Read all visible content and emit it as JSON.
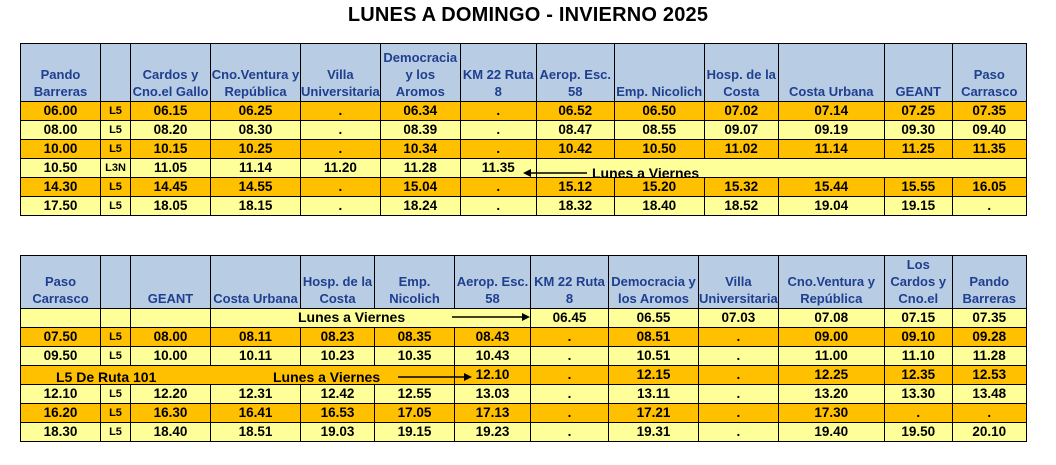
{
  "title": "LUNES A DOMINGO - INVIERNO 2025",
  "colors": {
    "header_bg": "#b8cce4",
    "header_text": "#1f3f8f",
    "orange": "#ffc000",
    "yellow": "#ffff99"
  },
  "table1": {
    "headers": [
      "Pando Barreras",
      "",
      "Cardos y Cno.el Gallo",
      "Cno.Ventura y República",
      "Villa Universitaria",
      "Democracia y los Aromos",
      "KM 22 Ruta 8",
      "Aerop. Esc. 58",
      "Emp. Nicolich",
      "Hosp. de la Costa",
      "Costa Urbana",
      "GEANT",
      "Paso Carrasco"
    ],
    "rows": [
      {
        "color": "orange",
        "cells": [
          "06.00",
          "L5",
          "06.15",
          "06.25",
          ".",
          "06.34",
          ".",
          "06.52",
          "06.50",
          "07.02",
          "07.14",
          "07.25",
          "07.35"
        ]
      },
      {
        "color": "yellow",
        "cells": [
          "08.00",
          "L5",
          "08.20",
          "08.30",
          ".",
          "08.39",
          ".",
          "08.47",
          "08.55",
          "09.07",
          "09.19",
          "09.30",
          "09.40"
        ]
      },
      {
        "color": "orange",
        "cells": [
          "10.00",
          "L5",
          "10.15",
          "10.25",
          ".",
          "10.34",
          ".",
          "10.42",
          "10.50",
          "11.02",
          "11.14",
          "11.25",
          "11.35"
        ]
      },
      {
        "color": "yellow",
        "cells": [
          "10.50",
          "L3N",
          "11.05",
          "11.14",
          "11.20",
          "11.28",
          "11.35",
          "",
          "",
          "",
          "",
          "",
          ""
        ]
      },
      {
        "color": "orange",
        "cells": [
          "14.30",
          "L5",
          "14.45",
          "14.55",
          ".",
          "15.04",
          ".",
          "15.12",
          "15.20",
          "15.32",
          "15.44",
          "15.55",
          "16.05"
        ]
      },
      {
        "color": "yellow",
        "cells": [
          "17.50",
          "L5",
          "18.05",
          "18.15",
          ".",
          "18.24",
          ".",
          "18.32",
          "18.40",
          "18.52",
          "19.04",
          "19.15",
          "."
        ]
      }
    ],
    "note": "Lunes a Viernes"
  },
  "table2": {
    "headers": [
      "Paso Carrasco",
      "",
      "GEANT",
      "Costa Urbana",
      "Hosp. de la Costa",
      "Emp. Nicolich",
      "Aerop. Esc. 58",
      "KM 22 Ruta 8",
      "Democracia y los Aromos",
      "Villa Universitaria",
      "Cno.Ventura y República",
      "Los Cardos y Cno.el",
      "Pando Barreras"
    ],
    "first_row": {
      "note": "Lunes a Viernes",
      "cells": [
        "06.45",
        "06.55",
        "07.03",
        "07.08",
        "07.15",
        "07.35"
      ]
    },
    "rows": [
      {
        "color": "orange",
        "cells": [
          "07.50",
          "L5",
          "08.00",
          "08.11",
          "08.23",
          "08.35",
          "08.43",
          ".",
          "08.51",
          ".",
          "09.00",
          "09.10",
          "09.28"
        ]
      },
      {
        "color": "yellow",
        "cells": [
          "09.50",
          "L5",
          "10.00",
          "10.11",
          "10.23",
          "10.35",
          "10.43",
          ".",
          "10.51",
          ".",
          "11.00",
          "11.10",
          "11.28"
        ]
      }
    ],
    "special_row": {
      "label": "L5 De Ruta 101",
      "note": "Lunes a Viernes",
      "cells": [
        "12.10",
        ".",
        "12.15",
        ".",
        "12.25",
        "12.35",
        "12.53"
      ]
    },
    "rows_after": [
      {
        "color": "yellow",
        "cells": [
          "12.10",
          "L5",
          "12.20",
          "12.31",
          "12.42",
          "12.55",
          "13.03",
          ".",
          "13.11",
          ".",
          "13.20",
          "13.30",
          "13.48"
        ]
      },
      {
        "color": "orange",
        "cells": [
          "16.20",
          "L5",
          "16.30",
          "16.41",
          "16.53",
          "17.05",
          "17.13",
          ".",
          "17.21",
          ".",
          "17.30",
          ".",
          "."
        ]
      },
      {
        "color": "yellow",
        "cells": [
          "18.30",
          "L5",
          "18.40",
          "18.51",
          "19.03",
          "19.15",
          "19.23",
          ".",
          "19.31",
          ".",
          "19.40",
          "19.50",
          "20.10"
        ]
      }
    ]
  }
}
